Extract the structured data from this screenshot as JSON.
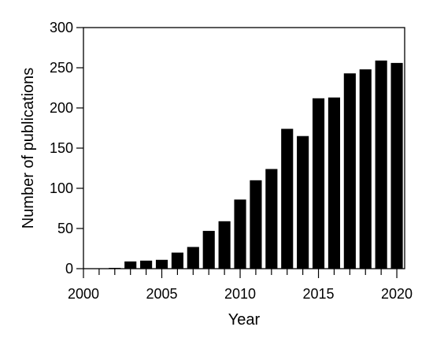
{
  "chart_data": {
    "type": "bar",
    "title": "",
    "xlabel": "Year",
    "ylabel": "Number of publications",
    "x": [
      2001,
      2002,
      2003,
      2004,
      2005,
      2006,
      2007,
      2008,
      2009,
      2010,
      2011,
      2012,
      2013,
      2014,
      2015,
      2016,
      2017,
      2018,
      2019,
      2020
    ],
    "values": [
      0,
      1,
      9,
      10,
      11,
      20,
      27,
      47,
      59,
      86,
      110,
      124,
      174,
      165,
      212,
      213,
      243,
      248,
      259,
      256
    ],
    "xlim": [
      2000,
      2020.5
    ],
    "ylim": [
      0,
      300
    ],
    "xticks": [
      2000,
      2005,
      2010,
      2015,
      2020
    ],
    "xtick_labels": [
      "2000",
      "2005",
      "2010",
      "2015",
      "2020"
    ],
    "yticks": [
      0,
      50,
      100,
      150,
      200,
      250,
      300
    ],
    "ytick_labels": [
      "0",
      "50",
      "100",
      "150",
      "200",
      "250",
      "300"
    ],
    "bar_color": "#000000",
    "grid": false,
    "legend": "none"
  }
}
